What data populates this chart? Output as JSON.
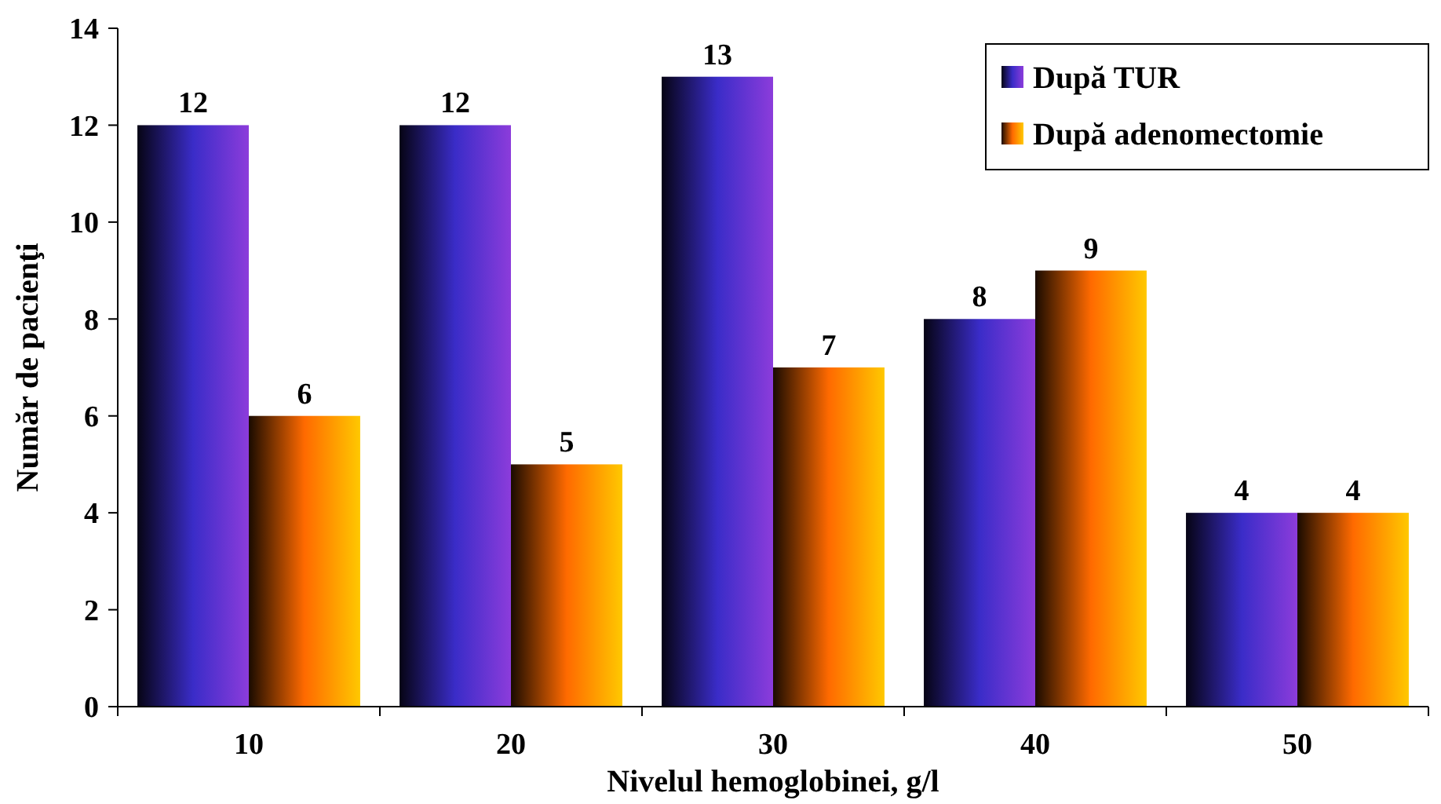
{
  "chart_data": {
    "type": "bar",
    "xlabel": "Nivelul hemoglobinei, g/l",
    "ylabel": "Număr de pacienţi",
    "categories": [
      "10",
      "20",
      "30",
      "40",
      "50"
    ],
    "series": [
      {
        "name": "După TUR",
        "color": "#3a2cc8",
        "values": [
          12,
          12,
          13,
          8,
          4
        ]
      },
      {
        "name": "După adenomectomie",
        "color": "#ff6a00",
        "values": [
          6,
          5,
          7,
          9,
          4
        ]
      }
    ],
    "ylim": [
      0,
      14
    ],
    "yticks": [
      0,
      2,
      4,
      6,
      8,
      10,
      12,
      14
    ],
    "data_labels": true,
    "legend": "top right",
    "grid": false
  }
}
